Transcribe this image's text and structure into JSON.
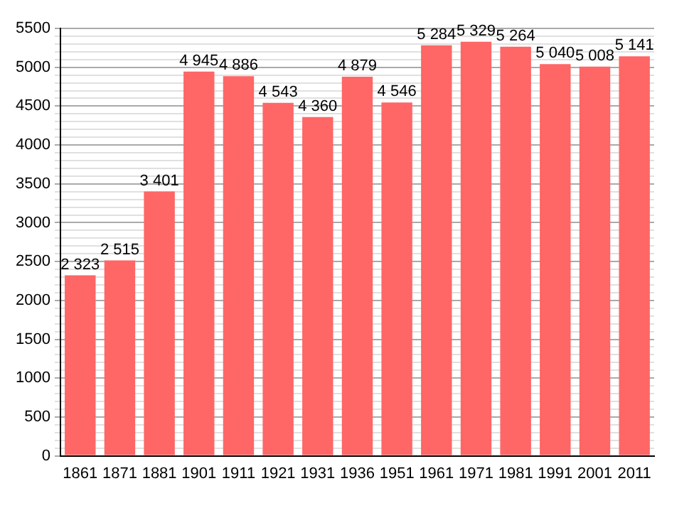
{
  "chart_data": {
    "type": "bar",
    "categories": [
      "1861",
      "1871",
      "1881",
      "1901",
      "1911",
      "1921",
      "1931",
      "1936",
      "1951",
      "1961",
      "1971",
      "1981",
      "1991",
      "2001",
      "2011"
    ],
    "values": [
      2323,
      2515,
      3401,
      4945,
      4886,
      4543,
      4360,
      4879,
      4546,
      5284,
      5329,
      5264,
      5040,
      5008,
      5141
    ],
    "value_labels": [
      "2 323",
      "2 515",
      "3 401",
      "4 945",
      "4 886",
      "4 543",
      "4 360",
      "4 879",
      "4 546",
      "5 284",
      "5 329",
      "5 264",
      "5 040",
      "5 008",
      "5 141"
    ],
    "color": "#ff6666",
    "ylim": [
      0,
      5500
    ],
    "yticks": [
      0,
      {
        "value": 100,
        "label": null
      },
      {
        "value": 200,
        "label": null
      },
      {
        "value": 300,
        "label": null
      },
      {
        "value": 400,
        "label": null
      },
      500,
      {
        "value": 600,
        "label": null
      },
      {
        "value": 700,
        "label": null
      },
      {
        "value": 800,
        "label": null
      },
      {
        "value": 900,
        "label": null
      },
      1000,
      {
        "value": 1100,
        "label": null
      },
      {
        "value": 1200,
        "label": null
      },
      {
        "value": 1300,
        "label": null
      },
      {
        "value": 1400,
        "label": null
      },
      1500,
      {
        "value": 1600,
        "label": null
      },
      {
        "value": 1700,
        "label": null
      },
      {
        "value": 1800,
        "label": null
      },
      {
        "value": 1900,
        "label": null
      },
      2000,
      {
        "value": 2100,
        "label": null
      },
      {
        "value": 2200,
        "label": null
      },
      {
        "value": 2300,
        "label": null
      },
      {
        "value": 2400,
        "label": null
      },
      2500,
      {
        "value": 2600,
        "label": null
      },
      {
        "value": 2700,
        "label": null
      },
      {
        "value": 2800,
        "label": null
      },
      {
        "value": 2900,
        "label": null
      },
      3000,
      {
        "value": 3100,
        "label": null
      },
      {
        "value": 3200,
        "label": null
      },
      {
        "value": 3300,
        "label": null
      },
      {
        "value": 3400,
        "label": null
      },
      3500,
      {
        "value": 3600,
        "label": null
      },
      {
        "value": 3700,
        "label": null
      },
      {
        "value": 3800,
        "label": null
      },
      {
        "value": 3900,
        "label": null
      },
      4000,
      {
        "value": 4100,
        "label": null
      },
      {
        "value": 4200,
        "label": null
      },
      {
        "value": 4300,
        "label": null
      },
      {
        "value": 4400,
        "label": null
      },
      4500,
      {
        "value": 4600,
        "label": null
      },
      {
        "value": 4700,
        "label": null
      },
      {
        "value": 4800,
        "label": null
      },
      {
        "value": 4900,
        "label": null
      },
      5000,
      {
        "value": 5100,
        "label": null
      },
      {
        "value": 5200,
        "label": null
      },
      {
        "value": 5300,
        "label": null
      },
      {
        "value": 5400,
        "label": null
      },
      5500
    ],
    "grid": "y"
  }
}
